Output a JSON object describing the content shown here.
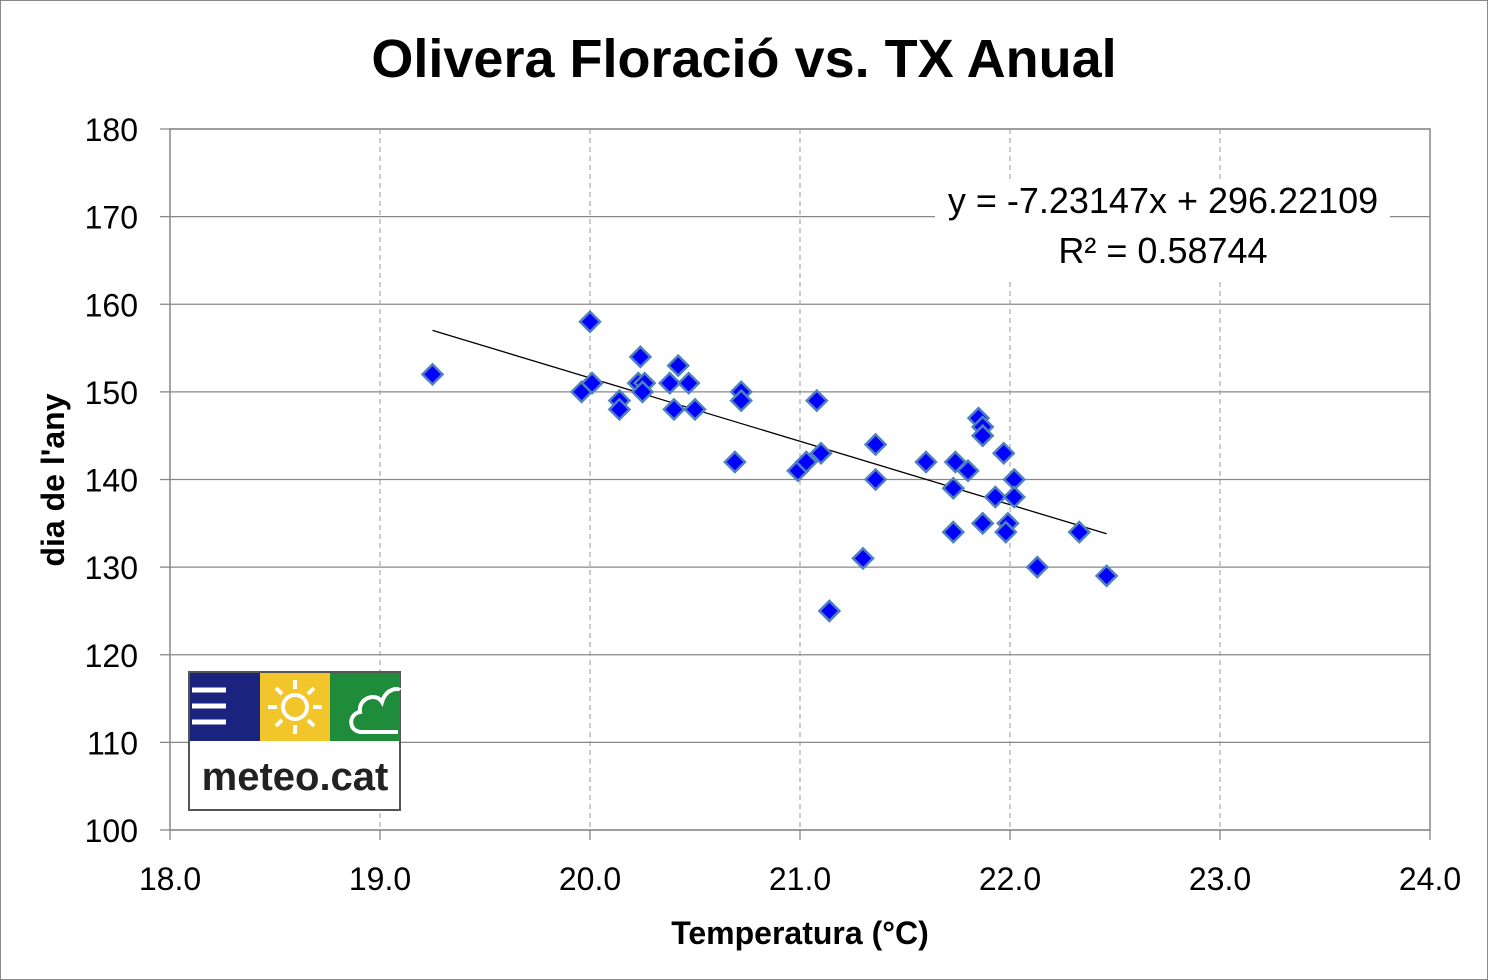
{
  "chart_data": {
    "type": "scatter",
    "title": "Olivera Floració  vs.  TX Anual",
    "xlabel": "Temperatura (°C)",
    "ylabel": "dia de l'any",
    "xlim": [
      18.0,
      24.0
    ],
    "ylim": [
      100,
      180
    ],
    "xticks": [
      "18.0",
      "19.0",
      "20.0",
      "21.0",
      "22.0",
      "23.0",
      "24.0"
    ],
    "yticks": [
      "100",
      "110",
      "120",
      "130",
      "140",
      "150",
      "160",
      "170",
      "180"
    ],
    "grid": {
      "x": "dashed",
      "y": "solid"
    },
    "marker_color": "#0000FF",
    "marker_edge": "#4F81BD",
    "points": [
      [
        19.25,
        152
      ],
      [
        20.0,
        158
      ],
      [
        19.96,
        150
      ],
      [
        20.01,
        151
      ],
      [
        20.14,
        149
      ],
      [
        20.14,
        148
      ],
      [
        20.24,
        154
      ],
      [
        20.23,
        151
      ],
      [
        20.26,
        151
      ],
      [
        20.25,
        150
      ],
      [
        20.38,
        151
      ],
      [
        20.4,
        148
      ],
      [
        20.42,
        153
      ],
      [
        20.47,
        151
      ],
      [
        20.5,
        148
      ],
      [
        20.72,
        150
      ],
      [
        20.72,
        149
      ],
      [
        20.69,
        142
      ],
      [
        21.08,
        149
      ],
      [
        20.99,
        141
      ],
      [
        21.03,
        142
      ],
      [
        21.1,
        143
      ],
      [
        21.14,
        125
      ],
      [
        21.3,
        131
      ],
      [
        21.36,
        144
      ],
      [
        21.36,
        140
      ],
      [
        21.6,
        142
      ],
      [
        21.73,
        139
      ],
      [
        21.73,
        134
      ],
      [
        21.74,
        142
      ],
      [
        21.8,
        141
      ],
      [
        21.85,
        147
      ],
      [
        21.87,
        146
      ],
      [
        21.87,
        145
      ],
      [
        21.87,
        135
      ],
      [
        21.97,
        143
      ],
      [
        21.93,
        138
      ],
      [
        21.99,
        135
      ],
      [
        21.98,
        134
      ],
      [
        22.02,
        140
      ],
      [
        22.02,
        138
      ],
      [
        22.13,
        130
      ],
      [
        22.33,
        134
      ],
      [
        22.46,
        129
      ]
    ],
    "trendline": {
      "type": "linear",
      "slope": -7.23147,
      "intercept": 296.22109,
      "x_range": [
        19.25,
        22.46
      ],
      "equation": "y = -7.23147x + 296.22109",
      "r_squared": "R² = 0.58744"
    }
  },
  "logo": {
    "text": "meteo.cat"
  }
}
